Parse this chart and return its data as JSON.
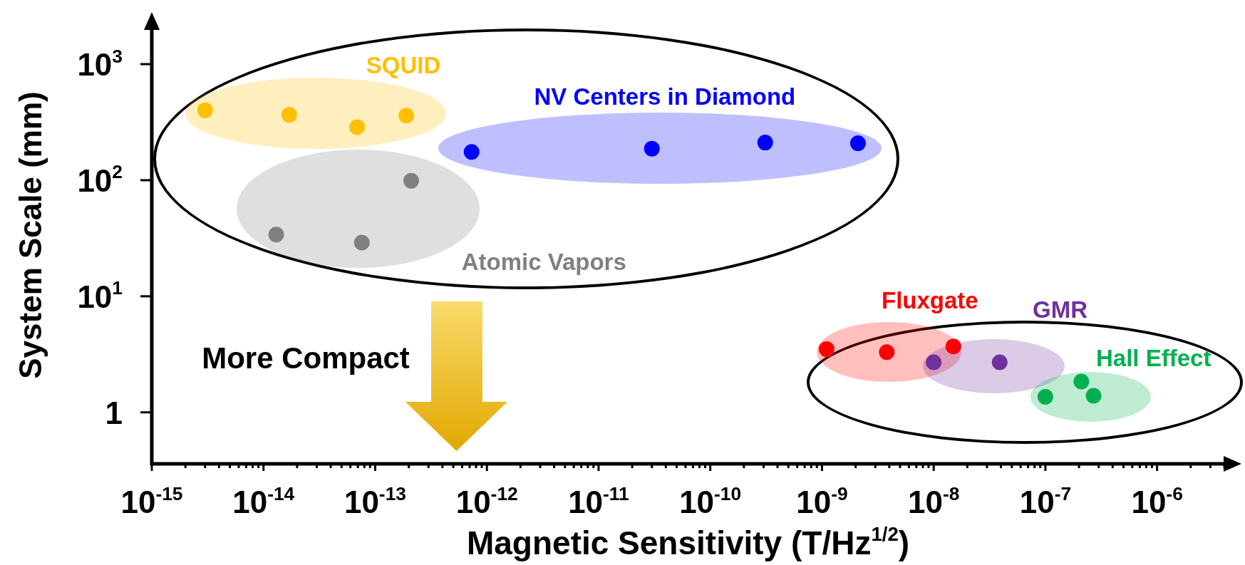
{
  "chart_data": {
    "type": "scatter",
    "log": "xy",
    "marker": "circle",
    "legend": false,
    "xlabel": "Magnetic Sensitivity (T/Hz$^{1/2}$)",
    "ylabel": "System Scale (mm)",
    "annotations": [
      "More Compact"
    ],
    "xlim": [
      1e-15,
      4e-06
    ],
    "ylim": [
      0.36,
      2000
    ],
    "xticks": [
      {
        "value": 1e-15,
        "label": "10$^{-15}$"
      },
      {
        "value": 2e-15,
        "label": null
      },
      {
        "value": 3e-15,
        "label": null
      },
      {
        "value": 4e-15,
        "label": null
      },
      {
        "value": 5e-15,
        "label": null
      },
      {
        "value": 6e-15,
        "label": null
      },
      {
        "value": 7e-15,
        "label": null
      },
      {
        "value": 8e-15,
        "label": null
      },
      {
        "value": 9e-15,
        "label": null
      },
      {
        "value": 1e-14,
        "label": "10$^{-14}$"
      },
      {
        "value": 2e-14,
        "label": null
      },
      {
        "value": 3e-14,
        "label": null
      },
      {
        "value": 4e-14,
        "label": null
      },
      {
        "value": 5e-14,
        "label": null
      },
      {
        "value": 6e-14,
        "label": null
      },
      {
        "value": 7e-14,
        "label": null
      },
      {
        "value": 8e-14,
        "label": null
      },
      {
        "value": 9e-14,
        "label": null
      },
      {
        "value": 1e-13,
        "label": "10$^{-13}$"
      },
      {
        "value": 2e-13,
        "label": null
      },
      {
        "value": 3e-13,
        "label": null
      },
      {
        "value": 4e-13,
        "label": null
      },
      {
        "value": 5e-13,
        "label": null
      },
      {
        "value": 6e-13,
        "label": null
      },
      {
        "value": 7e-13,
        "label": null
      },
      {
        "value": 8e-13,
        "label": null
      },
      {
        "value": 9e-13,
        "label": null
      },
      {
        "value": 1e-12,
        "label": "10$^{-12}$"
      },
      {
        "value": 2e-12,
        "label": null
      },
      {
        "value": 3e-12,
        "label": null
      },
      {
        "value": 4e-12,
        "label": null
      },
      {
        "value": 5e-12,
        "label": null
      },
      {
        "value": 6e-12,
        "label": null
      },
      {
        "value": 7e-12,
        "label": null
      },
      {
        "value": 8e-12,
        "label": null
      },
      {
        "value": 9e-12,
        "label": null
      },
      {
        "value": 1e-11,
        "label": "10$^{-11}$"
      },
      {
        "value": 2e-11,
        "label": null
      },
      {
        "value": 3e-11,
        "label": null
      },
      {
        "value": 4e-11,
        "label": null
      },
      {
        "value": 5e-11,
        "label": null
      },
      {
        "value": 6e-11,
        "label": null
      },
      {
        "value": 7e-11,
        "label": null
      },
      {
        "value": 8e-11,
        "label": null
      },
      {
        "value": 9e-11,
        "label": null
      },
      {
        "value": 1e-10,
        "label": "10$^{-10}$"
      },
      {
        "value": 2e-10,
        "label": null
      },
      {
        "value": 3e-10,
        "label": null
      },
      {
        "value": 4e-10,
        "label": null
      },
      {
        "value": 5e-10,
        "label": null
      },
      {
        "value": 6e-10,
        "label": null
      },
      {
        "value": 7e-10,
        "label": null
      },
      {
        "value": 8e-10,
        "label": null
      },
      {
        "value": 9e-10,
        "label": null
      },
      {
        "value": 1e-09,
        "label": "10$^{-9}$"
      },
      {
        "value": 2e-09,
        "label": null
      },
      {
        "value": 3e-09,
        "label": null
      },
      {
        "value": 4e-09,
        "label": null
      },
      {
        "value": 5e-09,
        "label": null
      },
      {
        "value": 6e-09,
        "label": null
      },
      {
        "value": 7e-09,
        "label": null
      },
      {
        "value": 8e-09,
        "label": null
      },
      {
        "value": 9e-09,
        "label": null
      },
      {
        "value": 1e-08,
        "label": "10$^{-8}$"
      },
      {
        "value": 2e-08,
        "label": null
      },
      {
        "value": 3e-08,
        "label": null
      },
      {
        "value": 4e-08,
        "label": null
      },
      {
        "value": 5e-08,
        "label": null
      },
      {
        "value": 6e-08,
        "label": null
      },
      {
        "value": 7e-08,
        "label": null
      },
      {
        "value": 8e-08,
        "label": null
      },
      {
        "value": 9e-08,
        "label": null
      },
      {
        "value": 1e-07,
        "label": "10$^{-7}$"
      },
      {
        "value": 2e-07,
        "label": null
      },
      {
        "value": 3e-07,
        "label": null
      },
      {
        "value": 4e-07,
        "label": null
      },
      {
        "value": 5e-07,
        "label": null
      },
      {
        "value": 6e-07,
        "label": null
      },
      {
        "value": 7e-07,
        "label": null
      },
      {
        "value": 8e-07,
        "label": null
      },
      {
        "value": 9e-07,
        "label": null
      },
      {
        "value": 1e-06,
        "label": "10$^{-6}$"
      },
      {
        "value": 2e-06,
        "label": null
      },
      {
        "value": 3e-06,
        "label": null
      },
      {
        "value": 4e-06,
        "label": null
      }
    ],
    "yticks": [
      1,
      {
        "value": 10,
        "label": "10$^{1}$"
      },
      {
        "value": 100,
        "label": "10$^{2}$"
      },
      {
        "value": 1000,
        "label": "10$^{3}$"
      }
    ],
    "series": [
      {
        "name": "SQUID",
        "color": "#ffc000",
        "x": [
          3e-15,
          1.7e-14,
          6.9e-14,
          1.9e-13
        ],
        "values": [
          400,
          366,
          286,
          360
        ]
      },
      {
        "name": "NV Centers in Diamond",
        "color": "#0000ff",
        "x": [
          7.3e-13,
          3e-11,
          3.1e-10,
          2.1e-09
        ],
        "values": [
          175,
          187,
          211,
          208
        ]
      },
      {
        "name": "Atomic Vapors",
        "color": "#808080",
        "x": [
          2.1e-13,
          1.3e-14,
          7.6e-14
        ],
        "values": [
          99,
          34,
          29
        ]
      },
      {
        "name": "Fluxgate",
        "color": "#ff0000",
        "x": [
          1.1e-09,
          3.8e-09,
          1.5e-08
        ],
        "values": [
          3.5,
          3.3,
          3.7
        ]
      },
      {
        "name": "GMR",
        "color": "#7030a0",
        "x": [
          1e-08,
          3.9e-08
        ],
        "values": [
          2.7,
          2.7
        ]
      },
      {
        "name": "Hall Effect",
        "color": "#00b050",
        "x": [
          1e-07,
          2.1e-07,
          2.7e-07
        ],
        "values": [
          1.36,
          1.84,
          1.39
        ]
      }
    ]
  }
}
